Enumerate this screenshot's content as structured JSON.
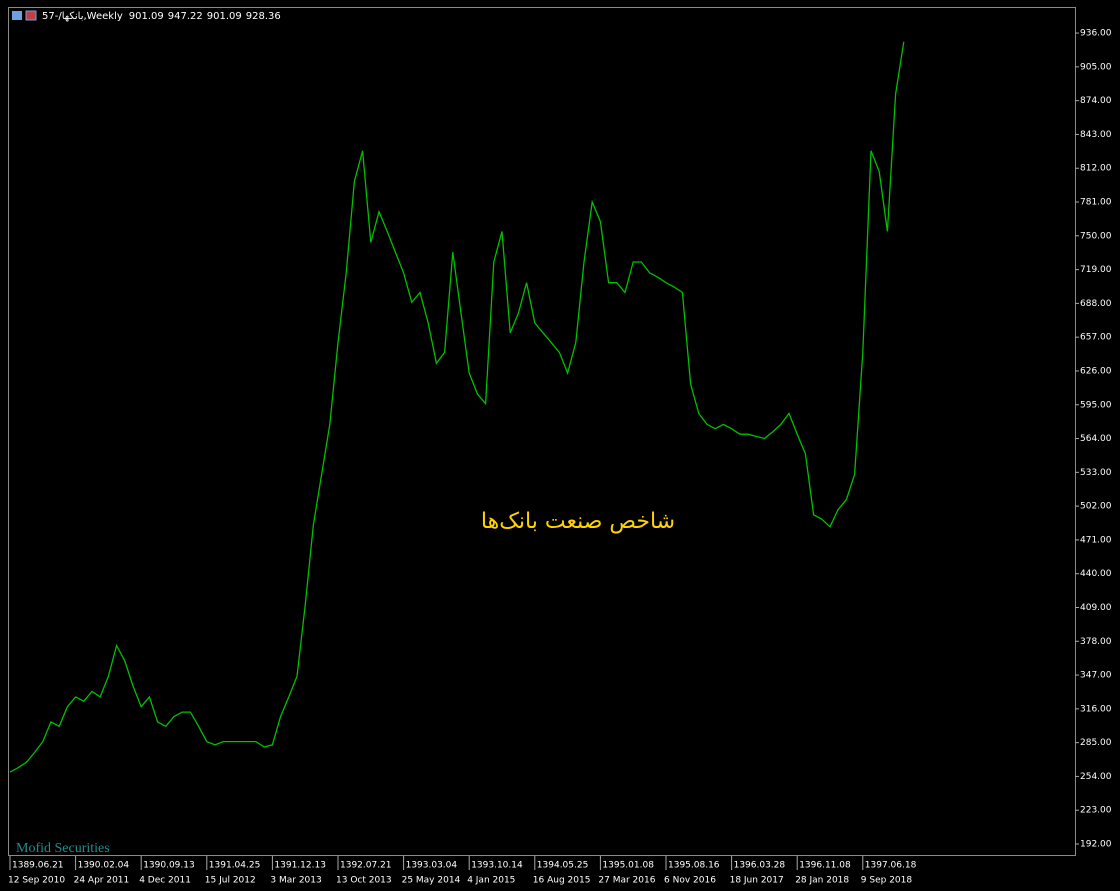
{
  "chart_data": {
    "type": "line",
    "header": {
      "symbol": "57-/بانکها,Weekly",
      "open": 901.09,
      "high": 947.22,
      "low": 901.09,
      "close": 928.36
    },
    "annotation": "شاخص صنعت بانک‌ها",
    "watermark": "Mofid Securities",
    "color": "#00c000",
    "values": [
      258,
      262,
      267,
      276,
      286,
      304,
      300,
      318,
      327,
      323,
      332,
      327,
      346,
      374,
      360,
      337,
      318,
      327,
      304,
      300,
      309,
      313,
      313,
      300,
      286,
      283,
      286,
      286,
      286,
      286,
      286,
      281,
      283,
      309,
      327,
      346,
      411,
      485,
      531,
      577,
      652,
      716,
      800,
      828,
      744,
      772,
      754,
      735,
      716,
      689,
      698,
      670,
      633,
      643,
      735,
      679,
      624,
      605,
      596,
      726,
      754,
      661,
      679,
      707,
      670,
      661,
      652,
      643,
      624,
      652,
      726,
      781,
      763,
      707,
      707,
      698,
      726,
      726,
      716,
      712,
      707,
      703,
      698,
      614,
      587,
      577,
      573,
      577,
      573,
      568,
      568,
      566,
      564,
      570,
      577,
      587,
      568,
      550,
      494,
      490,
      483,
      499,
      508,
      531,
      643,
      828,
      809,
      754,
      880,
      928
    ],
    "ylim": [
      181,
      959
    ],
    "yticks": [
      {
        "value": 192,
        "label": "192.00"
      },
      {
        "value": 223,
        "label": "223.00"
      },
      {
        "value": 254,
        "label": "254.00"
      },
      {
        "value": 285,
        "label": "285.00"
      },
      {
        "value": 316,
        "label": "316.00"
      },
      {
        "value": 347,
        "label": "347.00"
      },
      {
        "value": 378,
        "label": "378.00"
      },
      {
        "value": 409,
        "label": "409.00"
      },
      {
        "value": 440,
        "label": "440.00"
      },
      {
        "value": 471,
        "label": "471.00"
      },
      {
        "value": 502,
        "label": "502.00"
      },
      {
        "value": 533,
        "label": "533.00"
      },
      {
        "value": 564,
        "label": "564.00"
      },
      {
        "value": 595,
        "label": "595.00"
      },
      {
        "value": 626,
        "label": "626.00"
      },
      {
        "value": 657,
        "label": "657.00"
      },
      {
        "value": 688,
        "label": "688.00"
      },
      {
        "value": 719,
        "label": "719.00"
      },
      {
        "value": 750,
        "label": "750.00"
      },
      {
        "value": 781,
        "label": "781.00"
      },
      {
        "value": 812,
        "label": "812.00"
      },
      {
        "value": 843,
        "label": "843.00"
      },
      {
        "value": 874,
        "label": "874.00"
      },
      {
        "value": 905,
        "label": "905.00"
      },
      {
        "value": 936,
        "label": "936.00"
      }
    ],
    "xlim": [
      0,
      130
    ],
    "xticks": [
      {
        "value": 0,
        "label": "12 Sep 2010"
      },
      {
        "value": 8,
        "label": "24 Apr 2011"
      },
      {
        "value": 16,
        "label": "4 Dec 2011"
      },
      {
        "value": 24,
        "label": "15 Jul 2012"
      },
      {
        "value": 32,
        "label": "3 Mar 2013"
      },
      {
        "value": 40,
        "label": "13 Oct 2013"
      },
      {
        "value": 48,
        "label": "25 May 2014"
      },
      {
        "value": 56,
        "label": "4 Jan 2015"
      },
      {
        "value": 64,
        "label": "16 Aug 2015"
      },
      {
        "value": 72,
        "label": "27 Mar 2016"
      },
      {
        "value": 80,
        "label": "6 Nov 2016"
      },
      {
        "value": 88,
        "label": "18 Jun 2017"
      },
      {
        "value": 96,
        "label": "28 Jan 2018"
      },
      {
        "value": 104,
        "label": "9 Sep 2018"
      }
    ],
    "xticks_persian": [
      {
        "value": 0,
        "label": "1389.06.21"
      },
      {
        "value": 8,
        "label": "1390.02.04"
      },
      {
        "value": 16,
        "label": "1390.09.13"
      },
      {
        "value": 24,
        "label": "1391.04.25"
      },
      {
        "value": 32,
        "label": "1391.12.13"
      },
      {
        "value": 40,
        "label": "1392.07.21"
      },
      {
        "value": 48,
        "label": "1393.03.04"
      },
      {
        "value": 56,
        "label": "1393.10.14"
      },
      {
        "value": 64,
        "label": "1394.05.25"
      },
      {
        "value": 72,
        "label": "1395.01.08"
      },
      {
        "value": 80,
        "label": "1395.08.16"
      },
      {
        "value": 88,
        "label": "1396.03.28"
      },
      {
        "value": 96,
        "label": "1396.11.08"
      },
      {
        "value": 104,
        "label": "1397.06.18"
      }
    ]
  }
}
